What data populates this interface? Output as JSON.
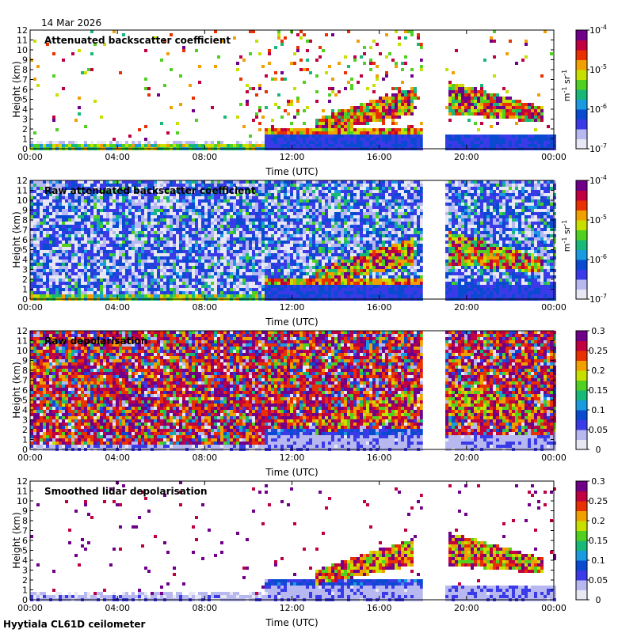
{
  "date": "14 Mar 2026",
  "site": "Hyytiala CL61D ceilometer",
  "xlabel": "Time (UTC)",
  "ylabel": "Height (km)",
  "x_ticks": [
    "00:00",
    "04:00",
    "08:00",
    "12:00",
    "16:00",
    "20:00",
    "00:00"
  ],
  "y_ticks": [
    "0",
    "1",
    "2",
    "3",
    "4",
    "5",
    "6",
    "7",
    "8",
    "9",
    "10",
    "11",
    "12"
  ],
  "colors": {
    "colormap": [
      "#e8e8f5",
      "#b8b8f0",
      "#3a3ae8",
      "#0a4ad0",
      "#1a9ae0",
      "#18b878",
      "#50d020",
      "#c8e000",
      "#f0a000",
      "#e83000",
      "#c00040",
      "#70008a"
    ],
    "gap": "#ffffff",
    "axis": "#000000"
  },
  "chart_data": [
    {
      "type": "heatmap",
      "title": "Attenuated backscatter coefficient",
      "x_range_hours": [
        0,
        24
      ],
      "ylim_km": [
        0,
        12
      ],
      "data_gap_hours": [
        18,
        19
      ],
      "colorbar": {
        "scale": "log",
        "ticks": [
          "10",
          "10",
          "10",
          "10"
        ],
        "exponents": [
          "-7",
          "-6",
          "-5",
          "-4"
        ],
        "unit": "m",
        "unit_exp": "-1",
        "unit2": "sr",
        "unit2_exp": "-1"
      },
      "features": [
        {
          "name": "boundary layer",
          "start_h": 0,
          "end_h": 10.7,
          "height_km": [
            0,
            0.4
          ]
        },
        {
          "name": "cloud layer",
          "start_h": 10.7,
          "end_h": 18,
          "height_km": [
            1.5,
            2.2
          ]
        },
        {
          "name": "elevated aerosol / cloud",
          "start_h": 13,
          "end_h": 17.5,
          "height_km": [
            2.5,
            6
          ]
        },
        {
          "name": "elevated layer",
          "start_h": 19.1,
          "end_h": 23.5,
          "height_km": [
            3,
            7
          ]
        }
      ]
    },
    {
      "type": "heatmap",
      "title": "Raw attenuated backscatter coefficient",
      "x_range_hours": [
        0,
        24
      ],
      "ylim_km": [
        0,
        12
      ],
      "data_gap_hours": [
        18,
        19
      ],
      "colorbar": {
        "scale": "log",
        "ticks": [
          "10",
          "10",
          "10",
          "10"
        ],
        "exponents": [
          "-7",
          "-6",
          "-5",
          "-4"
        ],
        "unit": "m",
        "unit_exp": "-1",
        "unit2": "sr",
        "unit2_exp": "-1"
      }
    },
    {
      "type": "heatmap",
      "title": "Raw depolarisation",
      "x_range_hours": [
        0,
        24
      ],
      "ylim_km": [
        0,
        12
      ],
      "data_gap_hours": [
        18,
        19
      ],
      "colorbar": {
        "scale": "linear",
        "ticks": [
          "0",
          "0.05",
          "0.1",
          "0.15",
          "0.2",
          "0.25",
          "0.3"
        ]
      }
    },
    {
      "type": "heatmap",
      "title": "Smoothed lidar depolarisation",
      "x_range_hours": [
        0,
        24
      ],
      "ylim_km": [
        0,
        12
      ],
      "data_gap_hours": [
        18,
        19
      ],
      "colorbar": {
        "scale": "linear",
        "ticks": [
          "0",
          "0.05",
          "0.1",
          "0.15",
          "0.2",
          "0.25",
          "0.3"
        ]
      }
    }
  ]
}
